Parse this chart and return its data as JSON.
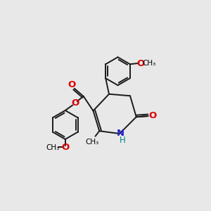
{
  "background_color": "#e8e8e8",
  "bond_color": "#1a1a1a",
  "bond_lw": 1.4,
  "O_color": "#dd0000",
  "N_color": "#2222cc",
  "NH_color": "#008888",
  "fig_width": 3.0,
  "fig_height": 3.0,
  "dpi": 100,
  "xlim": [
    0,
    12
  ],
  "ylim": [
    0,
    12
  ]
}
